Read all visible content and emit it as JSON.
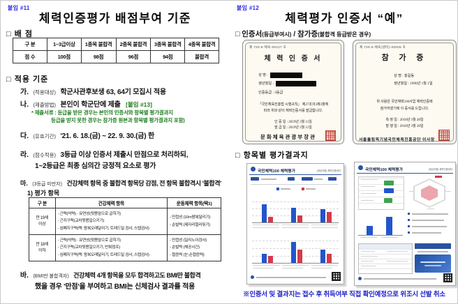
{
  "left": {
    "attachment": "붙임 #11",
    "title": "체력인증평가 배점부여 기준",
    "scoring": {
      "heading": "□ 배 점",
      "header": [
        "구  분",
        "1~3급이상",
        "1종목 불합격",
        "2종목 불합격",
        "3종목 불합격",
        "4종목 불합격"
      ],
      "row": [
        "점  수",
        "100점",
        "98점",
        "96점",
        "94점",
        "불합격"
      ]
    },
    "criteria": {
      "heading": "□ 적용 기준",
      "ga": {
        "m": "가.",
        "l": "(적용대상)",
        "t": "학군사관후보생 63, 64기 모집시 적용"
      },
      "na": {
        "m": "나.",
        "l": "(제출방법)",
        "t": "본인이 학군단에 제출",
        "ref": "[붙임 #13]",
        "note1": "* 제출서류 : 등급을 받은 경우는 본인의 인증서와 항목별 평가결과지",
        "note2": "등급을 받지 못한 경우는 참가증 원본과 항목별 평가결과지 포함)"
      },
      "da": {
        "m": "다.",
        "l": "(유효기간)",
        "t": "'21. 6. 18.(금) ~ 22. 9. 30.(금) 한"
      },
      "ra": {
        "m": "라.",
        "l": "(점수적용)",
        "t": "3등급 이상 인증서 제출시 만점으로 처리하되,",
        "t2": "1~2등급은 최종 심의간 긍정적 요소로 평가"
      },
      "ma": {
        "m": "마.",
        "l": "(3등급 미만자)",
        "t": "건강체력 항목 중 불합격 항목당 감점, 전 항목 불합격시 '불합격'"
      },
      "eval_heading": "1) 평가 항목",
      "eval_table": {
        "header": [
          "구  분",
          "건강체력 항목",
          "운동체력 항목(택1)"
        ],
        "rows": [
          {
            "g1": "만 19세",
            "g2": "이상",
            "h": [
              "- 근력(악력)      · 유연성(윗몸앞으로 굽히기)",
              "- 근지구력(교차윗몸일으키기)",
              "- 심폐지구력(택: 왕복오래달리기, 트레드밀 검사, 스텝검사)"
            ],
            "mo": [
              "- 민첩성 (10m왕복달리기)",
              "- 순발력 (제자리멀리뛰기)"
            ]
          },
          {
            "g1": "만 18세",
            "g2": "이하",
            "h": [
              "- 근력(악력)      · 유연성(윗몸앞으로 굽히기)",
              "- 근지구력(교차윗몸일으키기, 반복점프)",
              "- 심폐지구력(택: 왕복오래달리기, 트레드밀 검사, 스텝검사)"
            ],
            "mo": [
              "- 민첩성 (일리노이검사)",
              "- 순발력 (체공시간)",
              "- 협응력 (눈-손협응력)"
            ]
          }
        ]
      },
      "ba": {
        "m": "바.",
        "l": "(BMI만 불합격자)",
        "t": "건강체력 4개 항목을 모두 합격하고도 BMI만 불합격",
        "t2": "했을 경우 '만점'을 부여하고 BMI는 신체검사 결과를 적용"
      }
    }
  },
  "right": {
    "attachment": "붙임 #12",
    "title": "체력평가 인증서  “예”",
    "certs_heading": {
      "pre": "□ 인증서",
      "p1": "(등급부여시)",
      "mid": " / 참가증",
      "p2": "(불합격 등급받은 경우)"
    },
    "cert1": {
      "doc_no": "제 720-6-체육-00127 호",
      "title": "체 력 인 증 서",
      "name_label": "성    명 :",
      "birth_label": "생년월일 :",
      "grade_line": "인증등급 : 3등급",
      "body1": "「국민체육진흥법 시행규칙」 제27조의3제3항에",
      "body2": "따라 위와 같이 체력인증서를 발급합니다.",
      "date1": "인  증  일 : 2019년  3월  11일",
      "date2": "발  급  일 : 2019년  3월  11일",
      "issuer": "문화체육관광부장관"
    },
    "cert2": {
      "doc_no": "제 720-5-체육(센터)-00006 호",
      "title": "참  가  증",
      "name_line": "성    명 : 홍길동",
      "birth_line": "생년월일 : 1990년 1월 1일",
      "body1": "위 사람은 국민체력100사업 체력인증에",
      "body2": "참가하였기에 이 증서를 드립니다.",
      "date1": "측  정  일 : 2018년  3월  28일",
      "date2": "발  행  일 : 2018년  3월  28일",
      "issuer": "서울올림픽기념국민체육진흥공단 이사장"
    },
    "results_heading": "□ 항목별 평가결과지",
    "sheet_header": "국민체력100 체력평가",
    "sheet_header_sub": "(대상자용) 체력인증센터",
    "sheet1": {
      "panelA": [
        {
          "blue": 26,
          "red": 8
        },
        {
          "blue": 21,
          "red": 10
        },
        {
          "blue": 19,
          "red": 15
        }
      ],
      "panelB": [
        {
          "blue": 13,
          "red": 10
        },
        {
          "blue": 30,
          "red": 19
        },
        {
          "blue": 19,
          "red": 13
        }
      ]
    },
    "footer_note": "※인증서 및 결과지는 접수 후 취득여부 직접 확인예정으로 위조시 선발 취소"
  }
}
